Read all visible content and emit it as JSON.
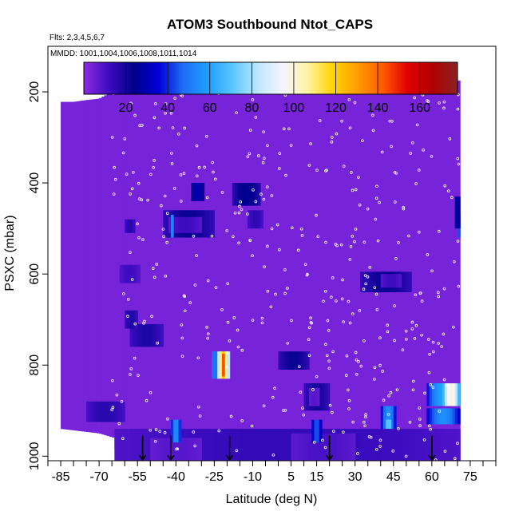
{
  "chart_data": {
    "type": "heatmap",
    "title": "ATOM3 Southbound Ntot_CAPS",
    "flights_note": "Flts: 2,3,4,5,6,7",
    "dates_note": "MMDD: 1001,1004,1006,1008,1011,1014",
    "xlabel": "Latitude (deg N)",
    "ylabel": "PSXC (mbar)",
    "xlim": [
      -90,
      85
    ],
    "ylim": [
      1010,
      100
    ],
    "x_tick_labels": [
      "-85",
      "-70",
      "-55",
      "-40",
      "-25",
      "-10",
      "5",
      "15",
      "30",
      "45",
      "60",
      "75"
    ],
    "x_tick_values": [
      -85,
      -70,
      -55,
      -40,
      -25,
      -10,
      5,
      15,
      30,
      45,
      60,
      75
    ],
    "y_tick_labels": [
      "200",
      "400",
      "600",
      "800",
      "1000"
    ],
    "y_tick_values": [
      200,
      400,
      600,
      800,
      1000
    ],
    "colorbar": {
      "range": [
        0,
        178
      ],
      "tick_values": [
        20,
        40,
        60,
        80,
        100,
        120,
        140,
        160
      ],
      "tick_labels": [
        "20",
        "40",
        "60",
        "80",
        "100",
        "120",
        "140",
        "160"
      ],
      "colors": [
        "#8a2be2",
        "#3d0cc0",
        "#00008b",
        "#0000d6",
        "#1e6ff5",
        "#1ea0ff",
        "#5cc8ff",
        "#bde8ff",
        "#f5f5ff",
        "#fff3a0",
        "#ffd400",
        "#ff9c00",
        "#ff5a00",
        "#e00000",
        "#b00000",
        "#8b2323"
      ]
    },
    "background_value": 3,
    "domain": {
      "top_pressure": [
        [
          -85,
          222
        ],
        [
          -80,
          222
        ],
        [
          -75,
          218
        ],
        [
          -70,
          215
        ],
        [
          -65,
          200
        ],
        [
          -60,
          192
        ],
        [
          -55,
          185
        ],
        [
          -50,
          183
        ],
        [
          -40,
          182
        ],
        [
          -20,
          180
        ],
        [
          0,
          180
        ],
        [
          20,
          180
        ],
        [
          40,
          178
        ],
        [
          60,
          175
        ],
        [
          71,
          175
        ]
      ],
      "bottom_pressure": [
        [
          -85,
          940
        ],
        [
          -70,
          950
        ],
        [
          -64,
          960
        ],
        [
          -63,
          1010
        ],
        [
          71,
          1010
        ]
      ]
    },
    "features": [
      {
        "name": "band-500",
        "lat": [
          -45,
          -25
        ],
        "p": [
          460,
          520
        ],
        "value": 22
      },
      {
        "name": "core-500",
        "lat": [
          -43,
          -30
        ],
        "p": [
          475,
          510
        ],
        "value": 12
      },
      {
        "name": "edge-500",
        "lat": [
          -42,
          -41
        ],
        "p": [
          470,
          520
        ],
        "value": 60
      },
      {
        "name": "cell-430",
        "lat": [
          -34,
          -29
        ],
        "p": [
          400,
          440
        ],
        "value": 30
      },
      {
        "name": "cell-420",
        "lat": [
          -18,
          -7
        ],
        "p": [
          400,
          450
        ],
        "value": 25
      },
      {
        "name": "cell-480",
        "lat": [
          -12,
          -6
        ],
        "p": [
          460,
          500
        ],
        "value": 15
      },
      {
        "name": "band-620",
        "lat": [
          32,
          52
        ],
        "p": [
          595,
          640
        ],
        "value": 22
      },
      {
        "name": "core-620",
        "lat": [
          40,
          48
        ],
        "p": [
          600,
          630
        ],
        "value": 12
      },
      {
        "name": "band-870",
        "lat": [
          10,
          20
        ],
        "p": [
          840,
          900
        ],
        "value": 20
      },
      {
        "name": "core-870",
        "lat": [
          12,
          16
        ],
        "p": [
          850,
          890
        ],
        "value": 8
      },
      {
        "name": "dark-790",
        "lat": [
          0,
          12
        ],
        "p": [
          770,
          810
        ],
        "value": 22
      },
      {
        "name": "hotspot-800",
        "lat": [
          -24,
          -19
        ],
        "p": [
          770,
          830
        ],
        "value": 120
      },
      {
        "name": "hot-red-800",
        "lat": [
          -22,
          -21
        ],
        "p": [
          775,
          825
        ],
        "value": 165
      },
      {
        "name": "hotspot-blue-800",
        "lat": [
          -26,
          -24
        ],
        "p": [
          770,
          830
        ],
        "value": 55
      },
      {
        "name": "band-740",
        "lat": [
          -58,
          -45
        ],
        "p": [
          710,
          760
        ],
        "value": 18
      },
      {
        "name": "band-700",
        "lat": [
          -60,
          -55
        ],
        "p": [
          680,
          720
        ],
        "value": 18
      },
      {
        "name": "band-590",
        "lat": [
          -62,
          -54
        ],
        "p": [
          580,
          620
        ],
        "value": 12
      },
      {
        "name": "band-500-l",
        "lat": [
          -60,
          -56
        ],
        "p": [
          480,
          510
        ],
        "value": 16
      },
      {
        "name": "band-900",
        "lat": [
          -75,
          -60
        ],
        "p": [
          880,
          925
        ],
        "value": 16
      },
      {
        "name": "high-870",
        "lat": [
          58,
          71
        ],
        "p": [
          840,
          890
        ],
        "value": 60
      },
      {
        "name": "high-870b",
        "lat": [
          64,
          71
        ],
        "p": [
          840,
          890
        ],
        "value": 100
      },
      {
        "name": "high-900",
        "lat": [
          58,
          71
        ],
        "p": [
          895,
          930
        ],
        "value": 55
      },
      {
        "name": "high-920",
        "lat": [
          40,
          46
        ],
        "p": [
          890,
          945
        ],
        "value": 55
      },
      {
        "name": "bright-950",
        "lat": [
          42,
          44
        ],
        "p": [
          920,
          960
        ],
        "value": 80
      },
      {
        "name": "surface-970",
        "lat": [
          -64,
          71
        ],
        "p": [
          940,
          1010
        ],
        "value": 14
      },
      {
        "name": "surface-core",
        "lat": [
          -50,
          -30
        ],
        "p": [
          960,
          1010
        ],
        "value": 8
      },
      {
        "name": "surface-core-b",
        "lat": [
          5,
          30
        ],
        "p": [
          950,
          1010
        ],
        "value": 10
      },
      {
        "name": "surface-bright",
        "lat": [
          -42,
          -38
        ],
        "p": [
          920,
          970
        ],
        "value": 55
      },
      {
        "name": "surface-bright-b",
        "lat": [
          13,
          17
        ],
        "p": [
          920,
          970
        ],
        "value": 45
      },
      {
        "name": "edge-right-500",
        "lat": [
          70,
          71
        ],
        "p": [
          470,
          520
        ],
        "value": 50
      },
      {
        "name": "right-edge-450",
        "lat": [
          69,
          71
        ],
        "p": [
          430,
          500
        ],
        "value": 30
      }
    ],
    "arrows_latitude": [
      -53,
      -42,
      -19,
      20,
      60
    ]
  }
}
